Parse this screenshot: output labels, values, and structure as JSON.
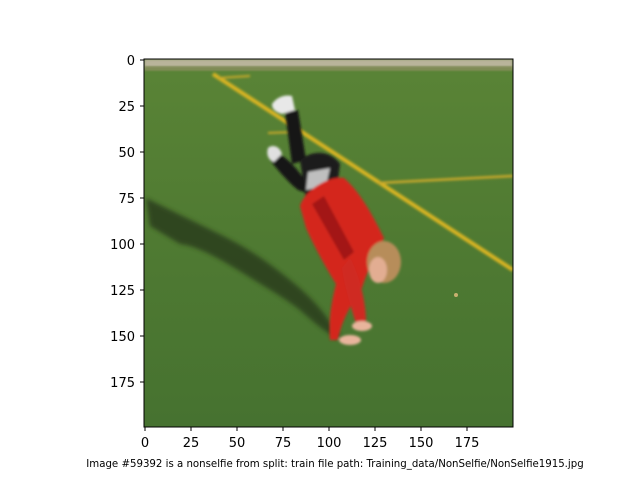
{
  "figure": {
    "caption": "Image #59392 is a nonselfie from split: train file path: Training_data/NonSelfie/NonSelfie1915.jpg"
  },
  "axes": {
    "x_ticks": [
      "0",
      "25",
      "50",
      "75",
      "100",
      "125",
      "150",
      "175"
    ],
    "y_ticks": [
      "0",
      "25",
      "50",
      "75",
      "100",
      "125",
      "150",
      "175"
    ]
  },
  "image": {
    "description": "child doing a cartwheel/handstand on a green artificial turf field",
    "colors": {
      "turf": "#4f7a32",
      "turf_dark": "#3e6327",
      "line": "#d8b423",
      "jersey": "#d4261f",
      "jersey_dark": "#9c1612",
      "pants": "#111111",
      "hair": "#b58a57",
      "skin": "#e6b39a",
      "shadow": "#243516"
    }
  }
}
